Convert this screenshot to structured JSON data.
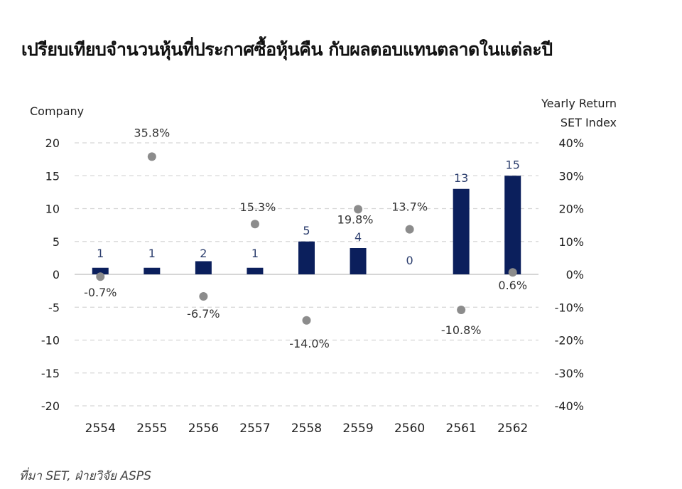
{
  "title": "เปรียบเทียบจำนวนหุ้นที่ประกาศซื้อหุ้นคืน กับผลตอบแทนตลาดในแต่ละปี",
  "footer": "ที่มา SET, ฝ่ายวิจัย ASPS",
  "colors": {
    "bar": "#0b1f5c",
    "dot": "#8c8c8c",
    "grid": "#d6d6d6",
    "zero_line": "#c8c8c8",
    "bar_label": "#2c3e6e",
    "dot_label": "#333333",
    "tick": "#222222"
  },
  "chart_data": {
    "type": "bar",
    "title": "เปรียบเทียบจำนวนหุ้นที่ประกาศซื้อหุ้นคืน กับผลตอบแทนตลาดในแต่ละปี",
    "xlabel": "",
    "ylabel": "Company",
    "y2label": "Yearly Return SET Index",
    "categories": [
      "2554",
      "2555",
      "2556",
      "2557",
      "2558",
      "2559",
      "2560",
      "2561",
      "2562"
    ],
    "series": [
      {
        "name": "Company",
        "type": "bar",
        "axis": "left",
        "values": [
          1,
          1,
          2,
          1,
          5,
          4,
          0,
          13,
          15
        ],
        "labels": [
          "1",
          "1",
          "2",
          "1",
          "5",
          "4",
          "0",
          "13",
          "15"
        ]
      },
      {
        "name": "Yearly Return SET Index",
        "type": "scatter",
        "axis": "right",
        "values": [
          -0.7,
          35.8,
          -6.7,
          15.3,
          -14.0,
          19.8,
          13.7,
          -10.8,
          0.6
        ],
        "labels": [
          "-0.7%",
          "35.8%",
          "-6.7%",
          "15.3%",
          "-14.0%",
          "19.8%",
          "13.7%",
          "-10.8%",
          "0.6%"
        ]
      }
    ],
    "ylim": [
      -20,
      20
    ],
    "yticks": [
      "20",
      "15",
      "10",
      "5",
      "0",
      "-5",
      "-10",
      "-15",
      "-20"
    ],
    "y2lim": [
      -40,
      40
    ],
    "y2ticks": [
      "40%",
      "30%",
      "20%",
      "10%",
      "0%",
      "-10%",
      "-20%",
      "-30%",
      "-40%"
    ],
    "grid": true,
    "legend": "none"
  }
}
